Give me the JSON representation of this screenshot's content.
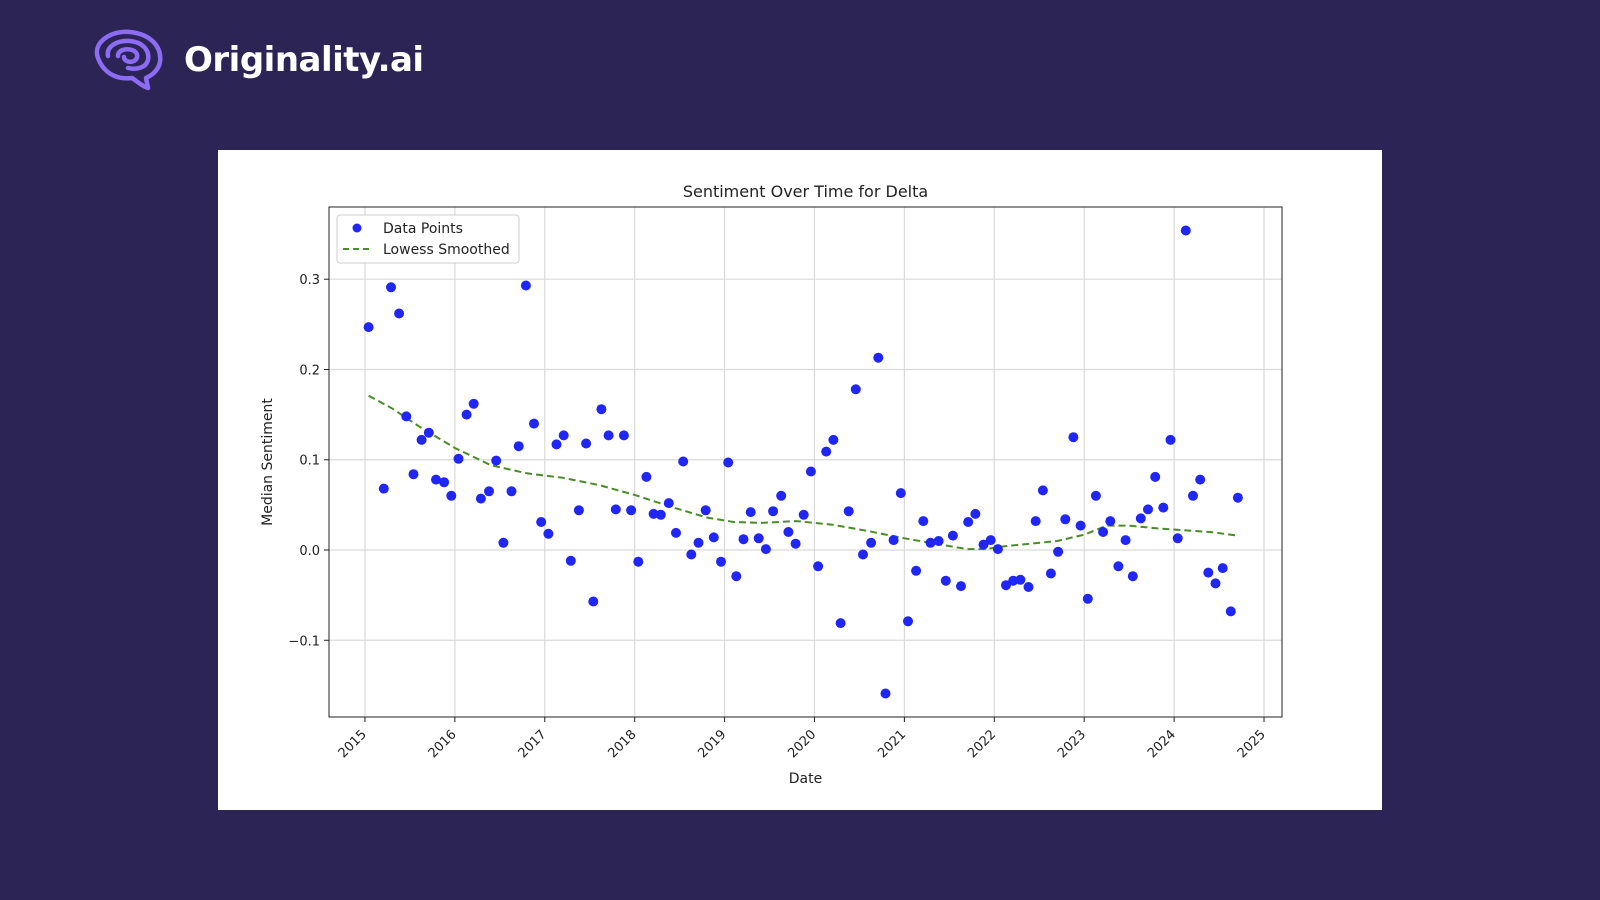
{
  "brand": {
    "name": "Originality.ai",
    "logo_icon": "brain-icon",
    "logo_color": "#8b6cf2"
  },
  "colors": {
    "background": "#2d2456",
    "card": "#ffffff",
    "points": "#1f26f5",
    "smoothed": "#4a8c2a",
    "grid": "#d9d9d9"
  },
  "chart_data": {
    "type": "scatter",
    "title": "Sentiment Over Time for Delta",
    "xlabel": "Date",
    "ylabel": "Median Sentiment",
    "xlim": [
      2014.6,
      2025.2
    ],
    "ylim": [
      -0.185,
      0.38
    ],
    "x_ticks": [
      2015,
      2016,
      2017,
      2018,
      2019,
      2020,
      2021,
      2022,
      2023,
      2024,
      2025
    ],
    "y_ticks": [
      -0.1,
      0.0,
      0.1,
      0.2,
      0.3
    ],
    "y_tick_labels": [
      "−0.1",
      "0.0",
      "0.1",
      "0.2",
      "0.3"
    ],
    "grid": true,
    "legend": {
      "placement": "top-left",
      "entries": [
        "Data Points",
        "Lowess Smoothed"
      ]
    },
    "series": [
      {
        "name": "Data Points",
        "kind": "scatter",
        "points": [
          [
            2015.04,
            0.247
          ],
          [
            2015.21,
            0.068
          ],
          [
            2015.29,
            0.291
          ],
          [
            2015.38,
            0.262
          ],
          [
            2015.46,
            0.148
          ],
          [
            2015.54,
            0.084
          ],
          [
            2015.63,
            0.122
          ],
          [
            2015.71,
            0.13
          ],
          [
            2015.79,
            0.078
          ],
          [
            2015.88,
            0.075
          ],
          [
            2015.96,
            0.06
          ],
          [
            2016.04,
            0.101
          ],
          [
            2016.13,
            0.15
          ],
          [
            2016.21,
            0.162
          ],
          [
            2016.29,
            0.057
          ],
          [
            2016.38,
            0.065
          ],
          [
            2016.46,
            0.099
          ],
          [
            2016.54,
            0.008
          ],
          [
            2016.63,
            0.065
          ],
          [
            2016.71,
            0.115
          ],
          [
            2016.79,
            0.293
          ],
          [
            2016.88,
            0.14
          ],
          [
            2016.96,
            0.031
          ],
          [
            2017.04,
            0.018
          ],
          [
            2017.13,
            0.117
          ],
          [
            2017.21,
            0.127
          ],
          [
            2017.29,
            -0.012
          ],
          [
            2017.38,
            0.044
          ],
          [
            2017.46,
            0.118
          ],
          [
            2017.54,
            -0.057
          ],
          [
            2017.63,
            0.156
          ],
          [
            2017.71,
            0.127
          ],
          [
            2017.79,
            0.045
          ],
          [
            2017.88,
            0.127
          ],
          [
            2017.96,
            0.044
          ],
          [
            2018.04,
            -0.013
          ],
          [
            2018.13,
            0.081
          ],
          [
            2018.21,
            0.04
          ],
          [
            2018.29,
            0.039
          ],
          [
            2018.38,
            0.052
          ],
          [
            2018.46,
            0.019
          ],
          [
            2018.54,
            0.098
          ],
          [
            2018.63,
            -0.005
          ],
          [
            2018.71,
            0.008
          ],
          [
            2018.79,
            0.044
          ],
          [
            2018.88,
            0.014
          ],
          [
            2018.96,
            -0.013
          ],
          [
            2019.04,
            0.097
          ],
          [
            2019.13,
            -0.029
          ],
          [
            2019.21,
            0.012
          ],
          [
            2019.29,
            0.042
          ],
          [
            2019.38,
            0.013
          ],
          [
            2019.46,
            0.001
          ],
          [
            2019.54,
            0.043
          ],
          [
            2019.63,
            0.06
          ],
          [
            2019.71,
            0.02
          ],
          [
            2019.79,
            0.007
          ],
          [
            2019.88,
            0.039
          ],
          [
            2019.96,
            0.087
          ],
          [
            2020.04,
            -0.018
          ],
          [
            2020.13,
            0.109
          ],
          [
            2020.21,
            0.122
          ],
          [
            2020.29,
            -0.081
          ],
          [
            2020.38,
            0.043
          ],
          [
            2020.46,
            0.178
          ],
          [
            2020.54,
            -0.005
          ],
          [
            2020.63,
            0.008
          ],
          [
            2020.71,
            0.213
          ],
          [
            2020.79,
            -0.159
          ],
          [
            2020.88,
            0.011
          ],
          [
            2020.96,
            0.063
          ],
          [
            2021.04,
            -0.079
          ],
          [
            2021.13,
            -0.023
          ],
          [
            2021.21,
            0.032
          ],
          [
            2021.29,
            0.008
          ],
          [
            2021.38,
            0.01
          ],
          [
            2021.46,
            -0.034
          ],
          [
            2021.54,
            0.016
          ],
          [
            2021.63,
            -0.04
          ],
          [
            2021.71,
            0.031
          ],
          [
            2021.79,
            0.04
          ],
          [
            2021.88,
            0.006
          ],
          [
            2021.96,
            0.011
          ],
          [
            2022.04,
            0.001
          ],
          [
            2022.13,
            -0.039
          ],
          [
            2022.21,
            -0.034
          ],
          [
            2022.29,
            -0.033
          ],
          [
            2022.38,
            -0.041
          ],
          [
            2022.46,
            0.032
          ],
          [
            2022.54,
            0.066
          ],
          [
            2022.63,
            -0.026
          ],
          [
            2022.71,
            -0.002
          ],
          [
            2022.79,
            0.034
          ],
          [
            2022.88,
            0.125
          ],
          [
            2022.96,
            0.027
          ],
          [
            2023.04,
            -0.054
          ],
          [
            2023.13,
            0.06
          ],
          [
            2023.21,
            0.02
          ],
          [
            2023.29,
            0.032
          ],
          [
            2023.38,
            -0.018
          ],
          [
            2023.46,
            0.011
          ],
          [
            2023.54,
            -0.029
          ],
          [
            2023.63,
            0.035
          ],
          [
            2023.71,
            0.045
          ],
          [
            2023.79,
            0.081
          ],
          [
            2023.88,
            0.047
          ],
          [
            2023.96,
            0.122
          ],
          [
            2024.04,
            0.013
          ],
          [
            2024.13,
            0.354
          ],
          [
            2024.21,
            0.06
          ],
          [
            2024.29,
            0.078
          ],
          [
            2024.38,
            -0.025
          ],
          [
            2024.46,
            -0.037
          ],
          [
            2024.54,
            -0.02
          ],
          [
            2024.63,
            -0.068
          ],
          [
            2024.71,
            0.058
          ]
        ]
      },
      {
        "name": "Lowess Smoothed",
        "kind": "line",
        "style": "dashed",
        "points": [
          [
            2015.04,
            0.171
          ],
          [
            2015.3,
            0.157
          ],
          [
            2015.6,
            0.137
          ],
          [
            2016.0,
            0.113
          ],
          [
            2016.4,
            0.094
          ],
          [
            2016.8,
            0.085
          ],
          [
            2017.2,
            0.08
          ],
          [
            2017.6,
            0.072
          ],
          [
            2018.0,
            0.061
          ],
          [
            2018.4,
            0.048
          ],
          [
            2018.8,
            0.036
          ],
          [
            2019.1,
            0.031
          ],
          [
            2019.4,
            0.03
          ],
          [
            2019.8,
            0.032
          ],
          [
            2020.2,
            0.028
          ],
          [
            2020.6,
            0.021
          ],
          [
            2021.0,
            0.013
          ],
          [
            2021.4,
            0.006
          ],
          [
            2021.7,
            0.001
          ],
          [
            2021.9,
            0.001
          ],
          [
            2022.1,
            0.004
          ],
          [
            2022.4,
            0.007
          ],
          [
            2022.7,
            0.01
          ],
          [
            2023.0,
            0.017
          ],
          [
            2023.25,
            0.027
          ],
          [
            2023.5,
            0.027
          ],
          [
            2023.8,
            0.024
          ],
          [
            2024.1,
            0.022
          ],
          [
            2024.4,
            0.02
          ],
          [
            2024.71,
            0.016
          ]
        ]
      }
    ]
  }
}
